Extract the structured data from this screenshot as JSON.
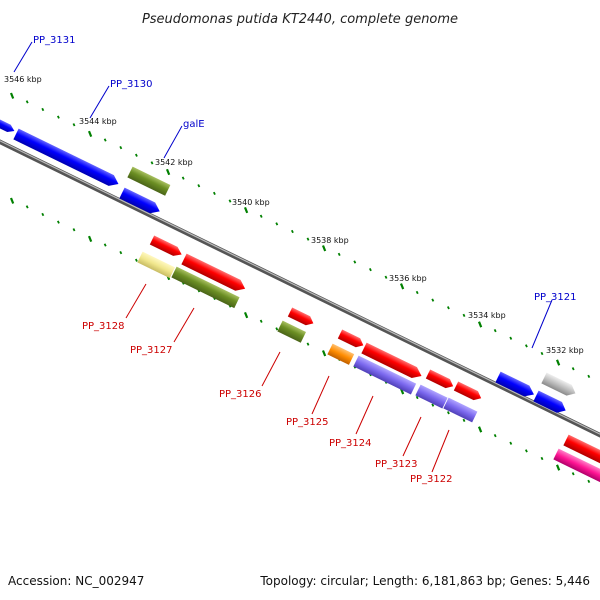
{
  "title": "Pseudomonas putida KT2440, complete genome",
  "accession": "Accession: NC_002947",
  "topology": "Topology: circular; Length: 6,181,863 bp; Genes: 5,446",
  "kbp_ticks": [
    "3546 kbp",
    "3544 kbp",
    "3542 kbp",
    "3540 kbp",
    "3538 kbp",
    "3536 kbp",
    "3534 kbp",
    "3532 kbp"
  ],
  "top_labels": [
    "PP_3131",
    "PP_3130",
    "galE",
    "PP_3121"
  ],
  "bottom_labels": [
    "PP_3128",
    "PP_3127",
    "PP_3126",
    "PP_3125",
    "PP_3124",
    "PP_3123",
    "PP_3122"
  ],
  "colors": {
    "blue": "#0000ff",
    "red": "#ff0000",
    "olive": "#6b8e23",
    "khaki": "#f0e68c",
    "orange": "#ff8c00",
    "slate": "#7b68ee",
    "gray": "#bebebe",
    "pink": "#ff1493",
    "tick": "#008000",
    "label_top": "#0000cc",
    "label_bottom": "#cc0000"
  }
}
